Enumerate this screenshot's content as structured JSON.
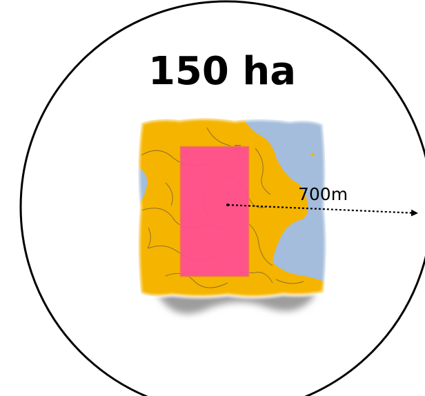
{
  "diagram": {
    "area_label": "150 ha",
    "radius_label": "700m",
    "colors": {
      "circle_stroke": "#000000",
      "land": "#f5b400",
      "water": "#a4bddc",
      "plot": "#ff4f92",
      "boundary_lines": "#6b5a3a",
      "shadow": "#8c8c8c",
      "radius_arrow": "#000000"
    }
  }
}
